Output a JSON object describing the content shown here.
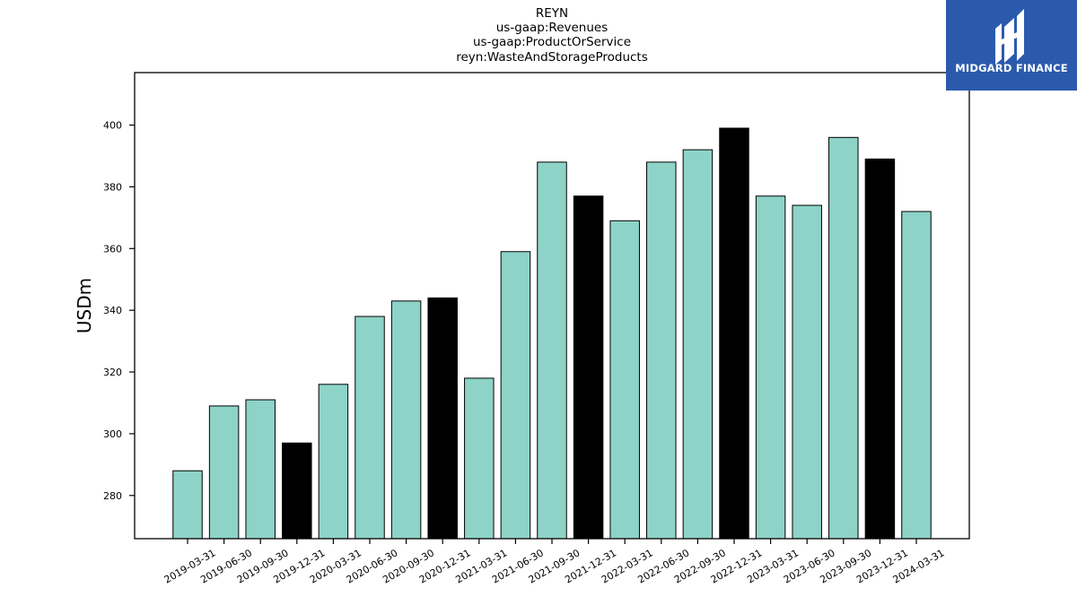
{
  "chart_data": {
    "type": "bar",
    "title_lines": [
      "REYN",
      "us-gaap:Revenues",
      "us-gaap:ProductOrService",
      "reyn:WasteAndStorageProducts"
    ],
    "xlabel": "",
    "ylabel": "USDm",
    "ylim": [
      266,
      417
    ],
    "yticks": [
      280,
      300,
      320,
      340,
      360,
      380,
      400
    ],
    "grid": false,
    "categories": [
      "2019-03-31",
      "2019-06-30",
      "2019-09-30",
      "2019-12-31",
      "2020-03-31",
      "2020-06-30",
      "2020-09-30",
      "2020-12-31",
      "2021-03-31",
      "2021-06-30",
      "2021-09-30",
      "2021-12-31",
      "2022-03-31",
      "2022-06-30",
      "2022-09-30",
      "2022-12-31",
      "2023-03-31",
      "2023-06-30",
      "2023-09-30",
      "2023-12-31",
      "2024-03-31"
    ],
    "values": [
      288,
      309,
      311,
      297,
      316,
      338,
      343,
      344,
      318,
      359,
      388,
      377,
      369,
      388,
      392,
      399,
      377,
      374,
      396,
      389,
      372
    ],
    "bar_colors": [
      "#8dd3c7",
      "#8dd3c7",
      "#8dd3c7",
      "#000000",
      "#8dd3c7",
      "#8dd3c7",
      "#8dd3c7",
      "#000000",
      "#8dd3c7",
      "#8dd3c7",
      "#8dd3c7",
      "#000000",
      "#8dd3c7",
      "#8dd3c7",
      "#8dd3c7",
      "#000000",
      "#8dd3c7",
      "#8dd3c7",
      "#8dd3c7",
      "#000000",
      "#8dd3c7"
    ]
  },
  "logo": {
    "text": "MIDGARD FINANCE",
    "background": "#2b5aad"
  }
}
